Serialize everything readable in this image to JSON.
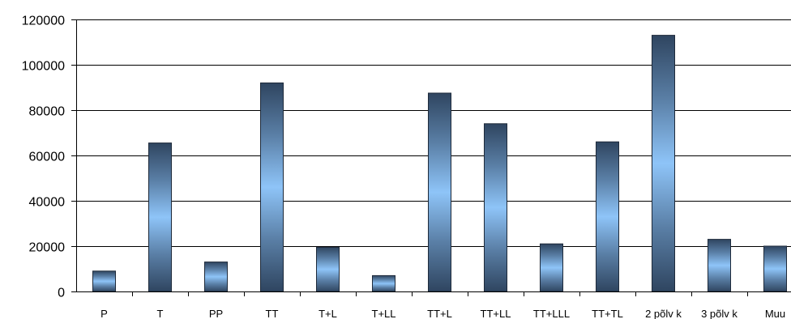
{
  "chart_data": {
    "type": "bar",
    "title": "",
    "xlabel": "",
    "ylabel": "",
    "categories": [
      "P",
      "T",
      "PP",
      "TT",
      "T+L",
      "T+LL",
      "TT+L",
      "TT+LL",
      "TT+LLL",
      "TT+TL",
      "2 põlv k",
      "3 põlv k",
      "Muu"
    ],
    "values": [
      9000,
      65500,
      13000,
      92000,
      19500,
      7000,
      87500,
      74000,
      21000,
      66000,
      113000,
      23000,
      20000
    ],
    "ylim": [
      0,
      120000
    ],
    "yticks": [
      "0",
      "20000",
      "40000",
      "60000",
      "80000",
      "100000",
      "120000"
    ],
    "grid": true,
    "bar_gradient": [
      "#2f4560",
      "#8ec4f8"
    ]
  }
}
